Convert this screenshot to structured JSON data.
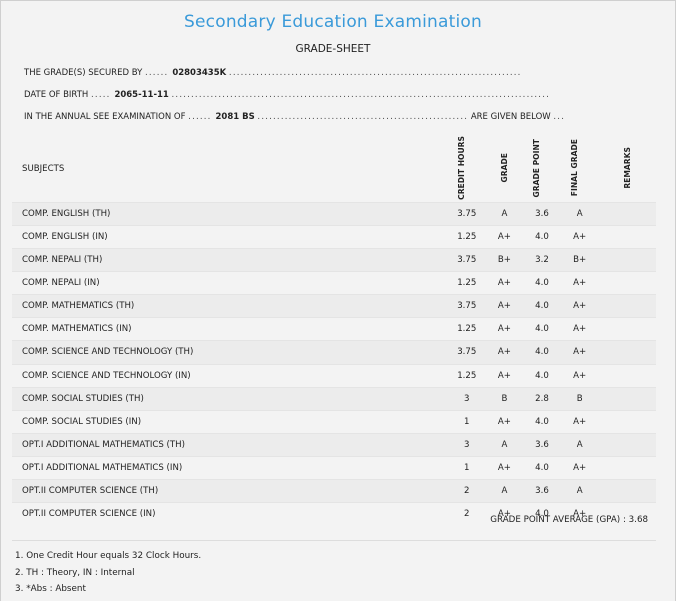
{
  "header": {
    "title": "Secondary Education Examination",
    "subtitle": "GRADE-SHEET"
  },
  "info": {
    "secured_by_label": "THE GRADE(S) SECURED BY",
    "secured_by_value": "02803435K",
    "dob_label": "DATE OF BIRTH",
    "dob_value": "2065-11-11",
    "exam_label": "IN THE ANNUAL SEE EXAMINATION OF",
    "exam_value": "2081 BS",
    "exam_suffix": "ARE GIVEN BELOW"
  },
  "table": {
    "headers": {
      "subjects": "SUBJECTS",
      "credit_hours": "CREDIT HOURS",
      "grade": "GRADE",
      "grade_point": "GRADE POINT",
      "final_grade": "FINAL GRADE",
      "remarks": "REMARKS"
    },
    "rows": [
      {
        "subject": "COMP. ENGLISH (TH)",
        "credit": "3.75",
        "grade": "A",
        "gp": "3.6",
        "final": "A"
      },
      {
        "subject": "COMP. ENGLISH (IN)",
        "credit": "1.25",
        "grade": "A+",
        "gp": "4.0",
        "final": "A+"
      },
      {
        "subject": "COMP. NEPALI (TH)",
        "credit": "3.75",
        "grade": "B+",
        "gp": "3.2",
        "final": "B+"
      },
      {
        "subject": "COMP. NEPALI (IN)",
        "credit": "1.25",
        "grade": "A+",
        "gp": "4.0",
        "final": "A+"
      },
      {
        "subject": "COMP. MATHEMATICS (TH)",
        "credit": "3.75",
        "grade": "A+",
        "gp": "4.0",
        "final": "A+"
      },
      {
        "subject": "COMP. MATHEMATICS (IN)",
        "credit": "1.25",
        "grade": "A+",
        "gp": "4.0",
        "final": "A+"
      },
      {
        "subject": "COMP. SCIENCE AND TECHNOLOGY (TH)",
        "credit": "3.75",
        "grade": "A+",
        "gp": "4.0",
        "final": "A+"
      },
      {
        "subject": "COMP. SCIENCE AND TECHNOLOGY (IN)",
        "credit": "1.25",
        "grade": "A+",
        "gp": "4.0",
        "final": "A+"
      },
      {
        "subject": "COMP. SOCIAL STUDIES (TH)",
        "credit": "3",
        "grade": "B",
        "gp": "2.8",
        "final": "B"
      },
      {
        "subject": "COMP. SOCIAL STUDIES (IN)",
        "credit": "1",
        "grade": "A+",
        "gp": "4.0",
        "final": "A+"
      },
      {
        "subject": "OPT.I ADDITIONAL MATHEMATICS (TH)",
        "credit": "3",
        "grade": "A",
        "gp": "3.6",
        "final": "A"
      },
      {
        "subject": "OPT.I ADDITIONAL MATHEMATICS (IN)",
        "credit": "1",
        "grade": "A+",
        "gp": "4.0",
        "final": "A+"
      },
      {
        "subject": "OPT.II COMPUTER SCIENCE (TH)",
        "credit": "2",
        "grade": "A",
        "gp": "3.6",
        "final": "A"
      },
      {
        "subject": "OPT.II COMPUTER SCIENCE (IN)",
        "credit": "2",
        "grade": "A+",
        "gp": "4.0",
        "final": "A+"
      }
    ]
  },
  "summary": {
    "gpa_label": "GRADE POINT AVERAGE (GPA) :",
    "gpa_value": "3.68"
  },
  "notes": [
    "1. One Credit Hour equals 32 Clock Hours.",
    "2. TH : Theory, IN : Internal",
    "3. *Abs : Absent"
  ],
  "colors": {
    "title": "#3a9ad9",
    "background": "#f3f3f3"
  }
}
